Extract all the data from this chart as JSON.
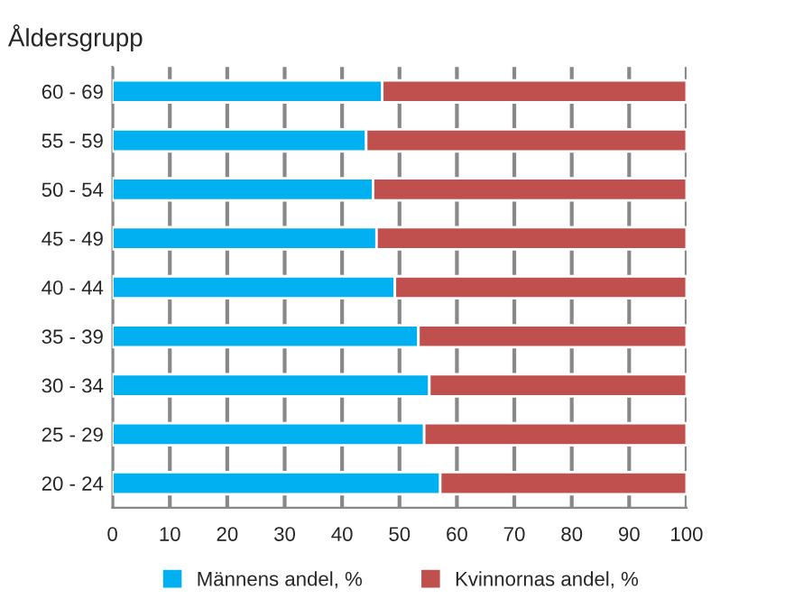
{
  "chart_data": {
    "type": "bar",
    "orientation": "horizontal",
    "stacked": true,
    "ylabel": "Åldersgrupp",
    "categories": [
      "60 - 69",
      "55 - 59",
      "50 - 54",
      "45 - 49",
      "40 - 44",
      "35 - 39",
      "30 - 34",
      "25 - 29",
      "20 - 24"
    ],
    "series": [
      {
        "name": "Männens andel, %",
        "color": "#00b0f0",
        "values": [
          47,
          44.2,
          45.4,
          46,
          49.2,
          53.3,
          55.2,
          54.3,
          57.1
        ]
      },
      {
        "name": "Kvinnornas andel, %",
        "color": "#c0504d",
        "values": [
          53,
          55.8,
          54.6,
          54,
          50.8,
          46.7,
          44.8,
          45.7,
          42.9
        ]
      }
    ],
    "xlim": [
      0,
      100
    ],
    "xticks": [
      0,
      10,
      20,
      30,
      40,
      50,
      60,
      70,
      80,
      90,
      100
    ],
    "grid": "x",
    "legend": "bottom"
  }
}
